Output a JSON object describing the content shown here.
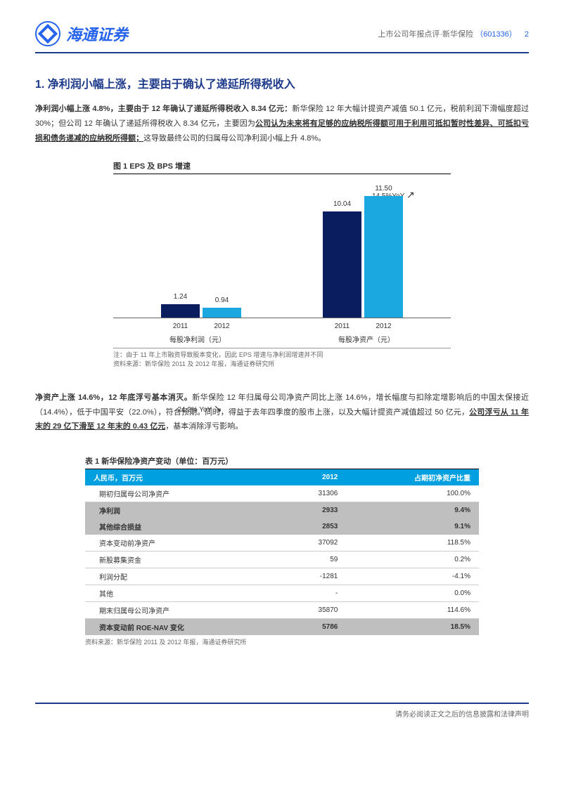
{
  "header": {
    "logo_text": "海通证券",
    "doc_type": "上市公司年报点评·新华保险",
    "code": "（601336）",
    "page": "2"
  },
  "section1": {
    "title": "1. 净利润小幅上涨，主要由于确认了递延所得税收入",
    "p1_bold": "净利润小幅上涨 4.8%，主要由于 12 年确认了递延所得税收入 8.34 亿元：",
    "p1_a": "新华保险 12 年大幅计提资产减值 50.1 亿元，税前利润下滑幅度超过 30%；但公司 12 年确认了递延所得税收入 8.34 亿元，主要因为",
    "p1_u": "公司认为未来将有足够的应纳税所得额可用于利用可抵扣暂时性差异、可抵扣亏损和债务递减的应纳税所得额；",
    "p1_b": "这导致最终公司的归属母公司净利润小幅上升 4.8%。"
  },
  "chart": {
    "title": "图 1 EPS 及 BPS 增速",
    "type": "bar",
    "background_color": "#ffffff",
    "ylim_max": 12,
    "groups": [
      {
        "label": "每股净利润（元）",
        "annot": "-24.2% YoY",
        "arrow": "↘",
        "bars": [
          {
            "x": "2011",
            "value": 1.24,
            "color": "#0a1d5e",
            "label": "1.24"
          },
          {
            "x": "2012",
            "value": 0.94,
            "color": "#1ba8e0",
            "label": "0.94"
          }
        ]
      },
      {
        "label": "每股净资产（元）",
        "annot": "14.5%YoY",
        "arrow": "↗",
        "bars": [
          {
            "x": "2011",
            "value": 10.04,
            "color": "#0a1d5e",
            "label": "10.04"
          },
          {
            "x": "2012",
            "value": 11.5,
            "color": "#1ba8e0",
            "label": "11.50"
          }
        ]
      }
    ],
    "note1": "注：由于 11 年上市融资导致股本变化，因此 EPS 增速与净利润增速并不同",
    "note2": "资料来源：新华保险 2011 及 2012 年报，海通证券研究所"
  },
  "section2": {
    "p2_bold": "净资产上涨 14.6%，12 年底浮亏基本消灭。",
    "p2_a": "新华保险 12 年归属母公司净资产同比上涨 14.6%，增长幅度与扣除定增影响后的中国太保接近（14.4%），低于中国平安（22.0%），符合预期。同时，得益于去年四季度的股市上涨，以及大幅计提资产减值超过 50 亿元，",
    "p2_u": "公司浮亏从 11 年末的 29 亿下滑至 12 年末的 0.43 亿元",
    "p2_b": "，基本消除浮亏影响。"
  },
  "table": {
    "title": "表 1 新华保险净资产变动（单位：百万元）",
    "header_bg": "#00a0e0",
    "shade_bg": "#bfbfbf",
    "columns": [
      "人民币，百万元",
      "2012",
      "占期初净资产比重"
    ],
    "rows": [
      {
        "cells": [
          "期初归属母公司净资产",
          "31306",
          "100.0%"
        ],
        "shade": false
      },
      {
        "cells": [
          "净利润",
          "2933",
          "9.4%"
        ],
        "shade": true
      },
      {
        "cells": [
          "其他综合损益",
          "2853",
          "9.1%"
        ],
        "shade": true
      },
      {
        "cells": [
          "资本变动前净资产",
          "37092",
          "118.5%"
        ],
        "shade": false
      },
      {
        "cells": [
          "新股募集资金",
          "59",
          "0.2%"
        ],
        "shade": false
      },
      {
        "cells": [
          "利润分配",
          "-1281",
          "-4.1%"
        ],
        "shade": false
      },
      {
        "cells": [
          "其他",
          "-",
          "0.0%"
        ],
        "shade": false
      },
      {
        "cells": [
          "期末归属母公司净资产",
          "35870",
          "114.6%"
        ],
        "shade": false
      },
      {
        "cells": [
          "资本变动前 ROE-NAV 变化",
          "5786",
          "18.5%"
        ],
        "shade": true
      }
    ],
    "source": "资料来源：新华保险 2011 及 2012 年报，海通证券研究所"
  },
  "footer": {
    "text": "请务必阅读正文之后的信息披露和法律声明"
  }
}
